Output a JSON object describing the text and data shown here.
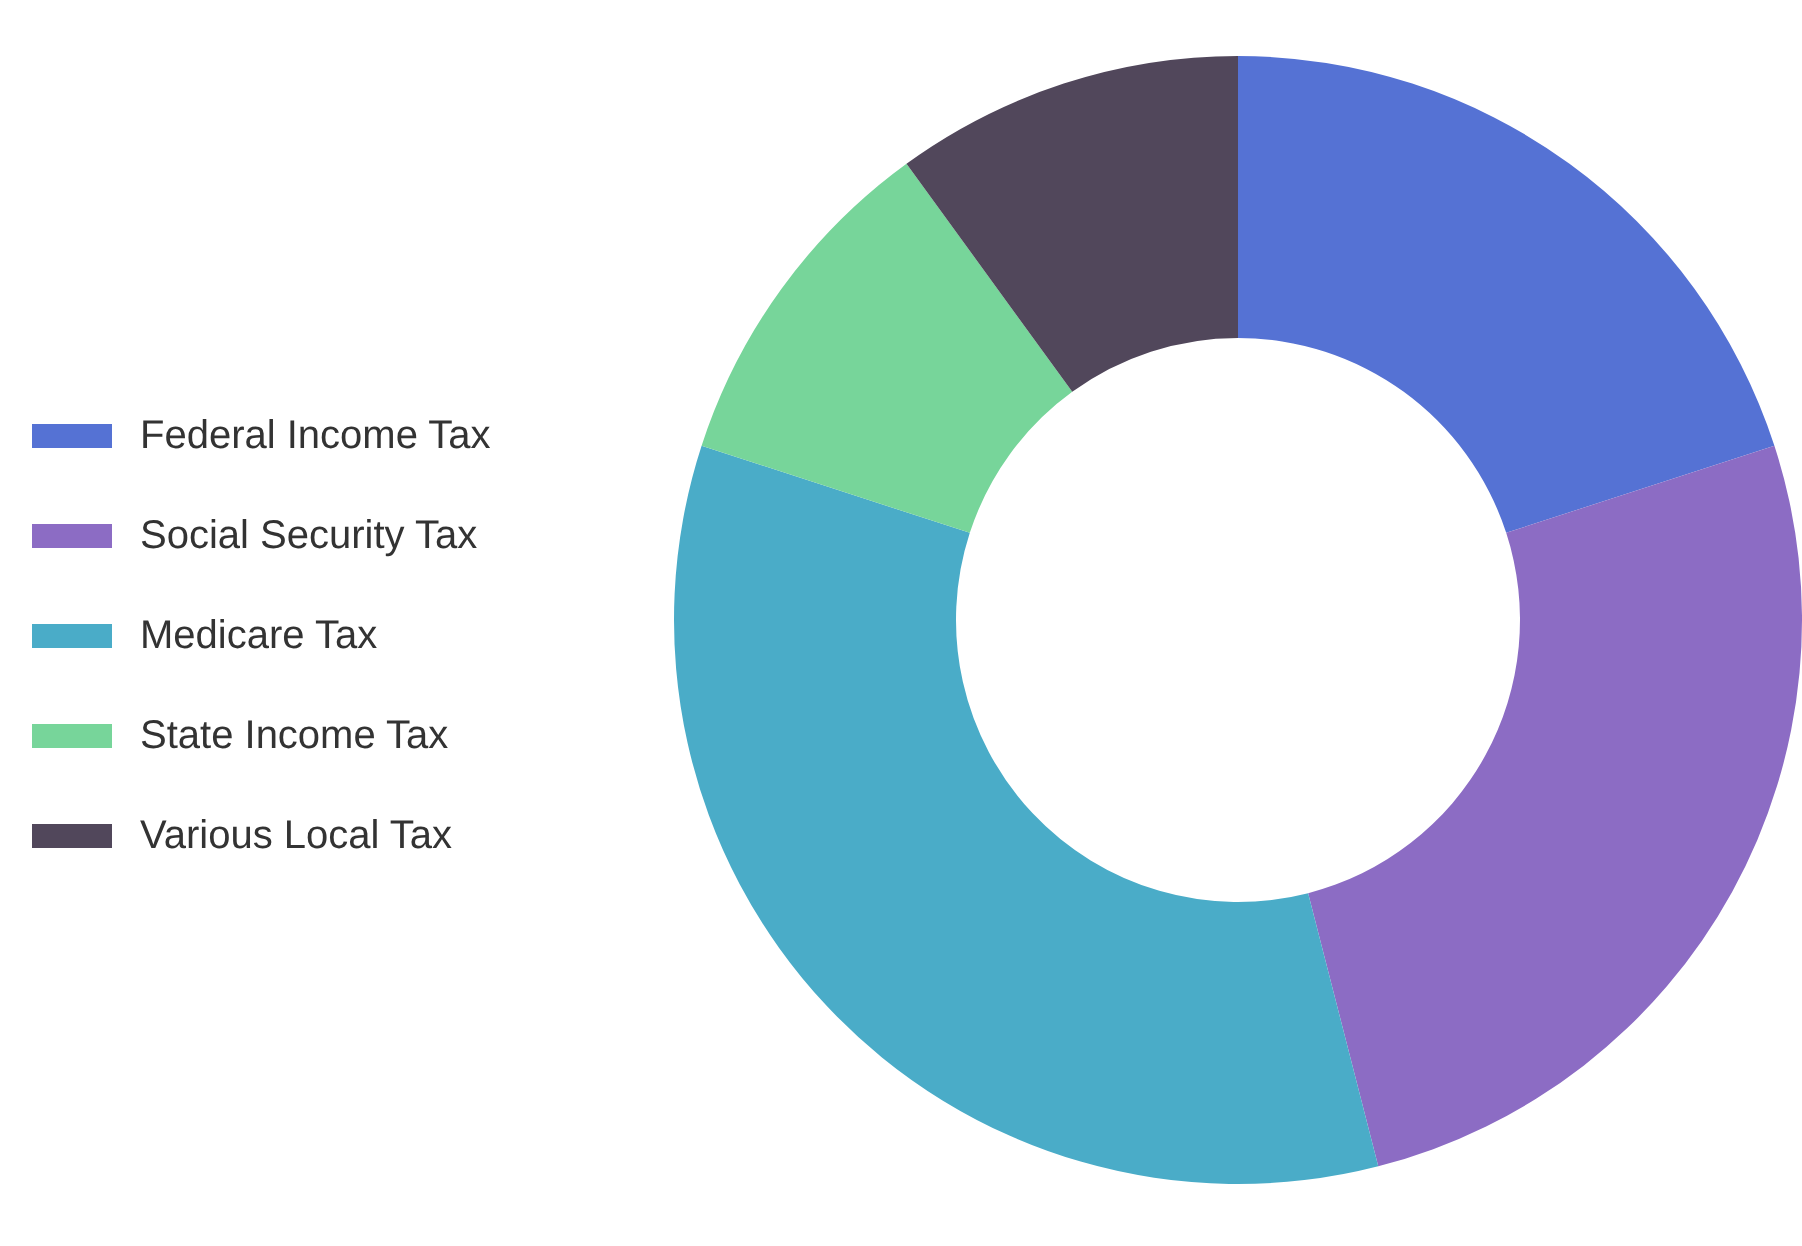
{
  "chart_data": {
    "type": "donut",
    "categories": [
      "Federal Income Tax",
      "Social Security Tax",
      "Medicare Tax",
      "State Income Tax",
      "Various Local Tax"
    ],
    "values": [
      20,
      26,
      34,
      10,
      10
    ],
    "colors": [
      "#5572d4",
      "#8c6cc4",
      "#4aacc8",
      "#77d59a",
      "#51475b"
    ],
    "legend": "left"
  }
}
